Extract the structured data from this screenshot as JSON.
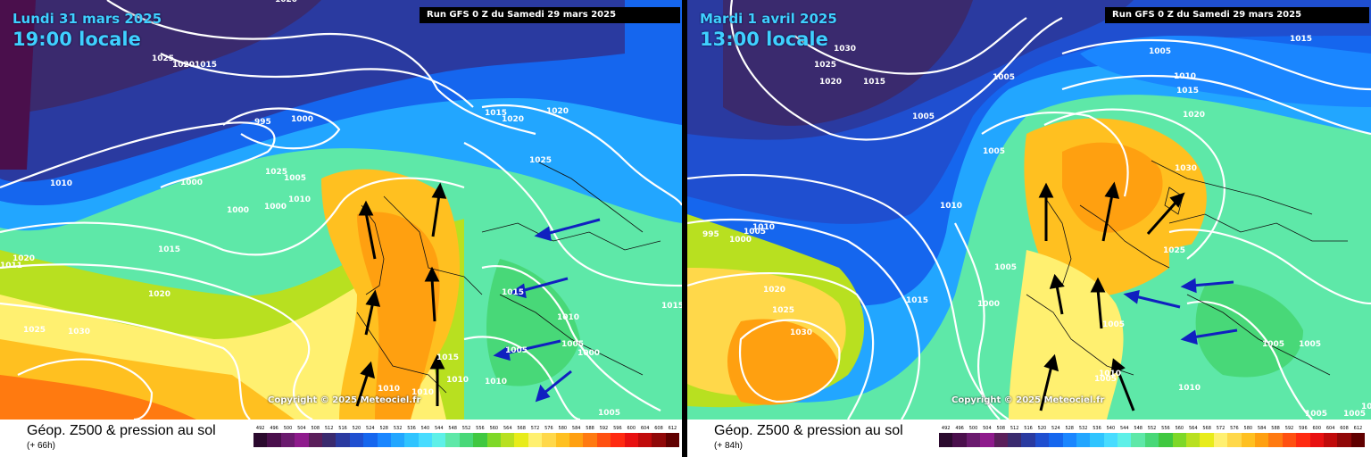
{
  "panels": [
    {
      "date": "Lundi 31 mars 2025",
      "time": "19:00 locale",
      "run": "Run GFS 0 Z du Samedi 29 mars 2025",
      "copyright": "Copyright © 2025 Meteociel.fr",
      "footer_title": "Géop. Z500 & pression au sol",
      "footer_sub": "(+ 66h)",
      "pressure_labels": [
        "1020",
        "1025",
        "1020",
        "1015",
        "995",
        "1000",
        "1015",
        "1020",
        "1020",
        "1010",
        "1000",
        "1025",
        "1000",
        "1005",
        "1010",
        "1025",
        "1000",
        "1015",
        "1011",
        "1020",
        "1020",
        "1025",
        "1030",
        "1015",
        "1010",
        "1005",
        "1000",
        "1010",
        "1015",
        "1010",
        "1010",
        "1010",
        "1005",
        "1005",
        "1015"
      ]
    },
    {
      "date": "Mardi 1 avril 2025",
      "time": "13:00 locale",
      "run": "Run GFS 0 Z du Samedi 29 mars 2025",
      "copyright": "Copyright © 2025 Meteociel.fr",
      "footer_title": "Géop. Z500 & pression au sol",
      "footer_sub": "(+ 84h)",
      "pressure_labels": [
        "1030",
        "1025",
        "1020",
        "1015",
        "1005",
        "1015",
        "1005",
        "1010",
        "1015",
        "1020",
        "1005",
        "1030",
        "1010",
        "1005",
        "1010",
        "995",
        "1000",
        "1005",
        "1025",
        "1005",
        "1000",
        "1015",
        "1020",
        "1025",
        "1030",
        "1005",
        "1005",
        "1005",
        "1010",
        "1010",
        "1005",
        "1010",
        "1005",
        "1005"
      ]
    }
  ],
  "color_scale": {
    "labels": [
      "492",
      "496",
      "500",
      "504",
      "508",
      "512",
      "516",
      "520",
      "524",
      "528",
      "532",
      "536",
      "540",
      "544",
      "548",
      "552",
      "556",
      "560",
      "564",
      "568",
      "572",
      "576",
      "580",
      "584",
      "588",
      "592",
      "596",
      "600",
      "604",
      "608",
      "612"
    ],
    "colors": [
      "#2b0a2e",
      "#4a0f4c",
      "#6a1a6e",
      "#8e1a8c",
      "#5a1e5a",
      "#3a2a6e",
      "#2a3aa0",
      "#1f4fd0",
      "#1566ee",
      "#1a86ff",
      "#22a6ff",
      "#2fc4ff",
      "#48dcff",
      "#5ef0e8",
      "#5ee8a8",
      "#48d878",
      "#40c840",
      "#7ed828",
      "#b8e020",
      "#e8ec1a",
      "#fff070",
      "#ffd84a",
      "#ffc020",
      "#ffa010",
      "#ff7a10",
      "#ff5010",
      "#ff2a10",
      "#e81010",
      "#c00a0a",
      "#900808",
      "#600000"
    ]
  }
}
